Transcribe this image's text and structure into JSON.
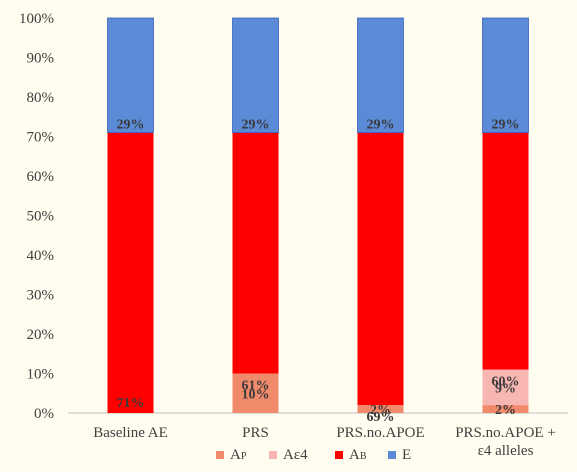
{
  "chart_data": {
    "type": "bar",
    "stacked": true,
    "percent": true,
    "ylim": [
      0,
      100
    ],
    "y_ticks": [
      "0%",
      "10%",
      "20%",
      "30%",
      "40%",
      "50%",
      "60%",
      "70%",
      "80%",
      "90%",
      "100%"
    ],
    "categories": [
      [
        "Baseline AE"
      ],
      [
        "PRS"
      ],
      [
        "PRS.no.APOE"
      ],
      [
        "PRS.no.APOE +",
        "ε4 alleles"
      ]
    ],
    "series": [
      {
        "name": "AP",
        "label_main": "A",
        "label_sub": "P",
        "color": "#f08a6a",
        "values": [
          0,
          10,
          2,
          2
        ],
        "labels": [
          "",
          "10%",
          "2%",
          "2%"
        ]
      },
      {
        "name": "Aε4",
        "label_main": "Aε4",
        "label_sub": "",
        "color": "#f7b6b2",
        "values": [
          0,
          0,
          0,
          9
        ],
        "labels": [
          "",
          "",
          "",
          "9%"
        ]
      },
      {
        "name": "AB",
        "label_main": "A",
        "label_sub": "B",
        "color": "#ff0000",
        "values": [
          71,
          61,
          69,
          60
        ],
        "labels": [
          "71%",
          "61%",
          "69%",
          "60%"
        ]
      },
      {
        "name": "E",
        "label_main": "E",
        "label_sub": "",
        "color": "#5b8ad6",
        "values": [
          29,
          29,
          29,
          29
        ],
        "labels": [
          "29%",
          "29%",
          "29%",
          "29%"
        ]
      }
    ],
    "grid": false,
    "legend_position": "bottom"
  }
}
